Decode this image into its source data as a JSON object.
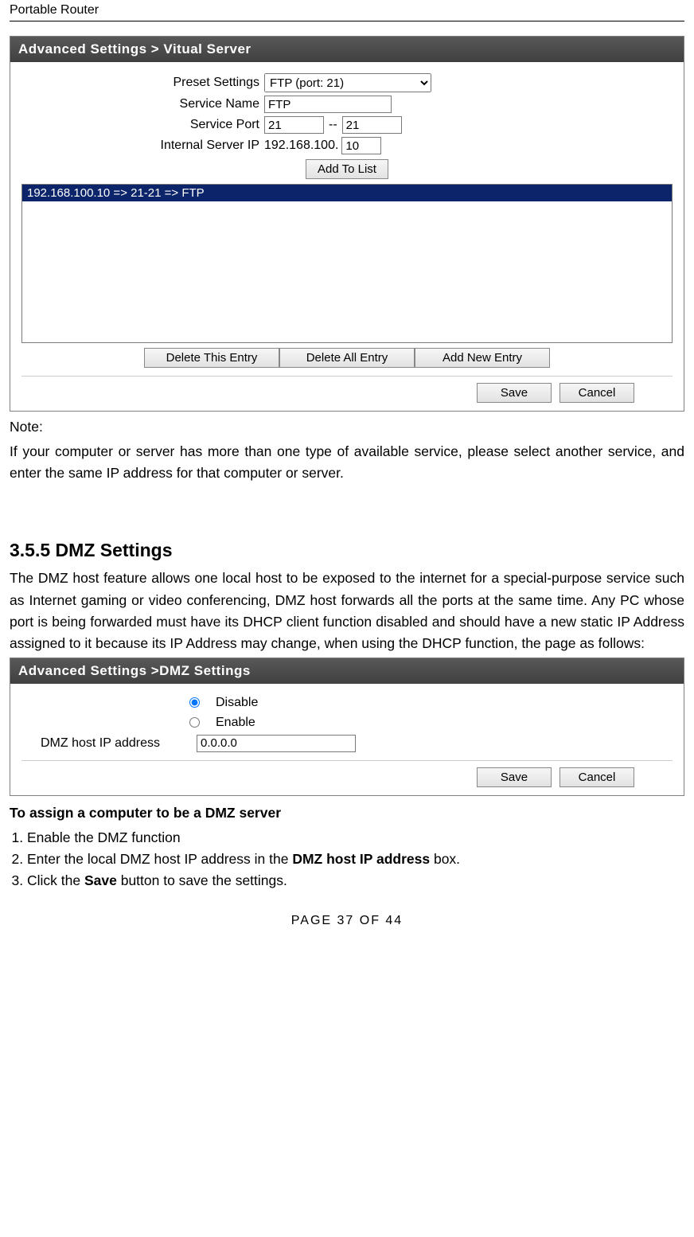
{
  "doc": {
    "header": "Portable Router",
    "footer": "PAGE   37   OF   44"
  },
  "panel1": {
    "title": "Advanced Settings > Vitual Server",
    "labels": {
      "preset": "Preset Settings",
      "serviceName": "Service Name",
      "servicePort": "Service Port",
      "internalIp": "Internal Server IP"
    },
    "values": {
      "presetOption": "FTP (port: 21)",
      "serviceName": "FTP",
      "portFrom": "21",
      "portTo": "21",
      "ipPrefix": "192.168.100.",
      "ipLast": "10"
    },
    "addToList": "Add To List",
    "listEntry": "192.168.100.10 => 21-21 => FTP",
    "buttons": {
      "deleteThis": "Delete This Entry",
      "deleteAll": "Delete All Entry",
      "addNew": "Add New Entry",
      "save": "Save",
      "cancel": "Cancel"
    }
  },
  "note": {
    "label": "Note:",
    "text": "If your computer or server has more than one type of available service, please select another service, and enter the same IP address for that computer or server."
  },
  "section": {
    "heading": "3.5.5 DMZ Settings",
    "intro": "The DMZ host feature allows one local host to be exposed to the internet for a special-purpose service such as Internet gaming or video conferencing, DMZ host forwards all the ports at the same time. Any PC whose port is being forwarded must have its DHCP client function disabled and should have a new static IP Address assigned to it because its IP Address may change, when using the DHCP function, the page as follows:"
  },
  "panel2": {
    "title": "Advanced Settings >DMZ Settings",
    "disable": "Disable",
    "enable": "Enable",
    "ipLabel": "DMZ host IP address",
    "ipValue": "0.0.0.0",
    "save": "Save",
    "cancel": "Cancel"
  },
  "assign": {
    "heading": "To assign a computer to be a DMZ server",
    "step1": "Enable the DMZ function",
    "step2a": "Enter the local DMZ host IP address in the ",
    "step2b": "DMZ host IP address",
    "step2c": " box.",
    "step3a": "Click the ",
    "step3b": "Save",
    "step3c": " button to save the settings."
  }
}
